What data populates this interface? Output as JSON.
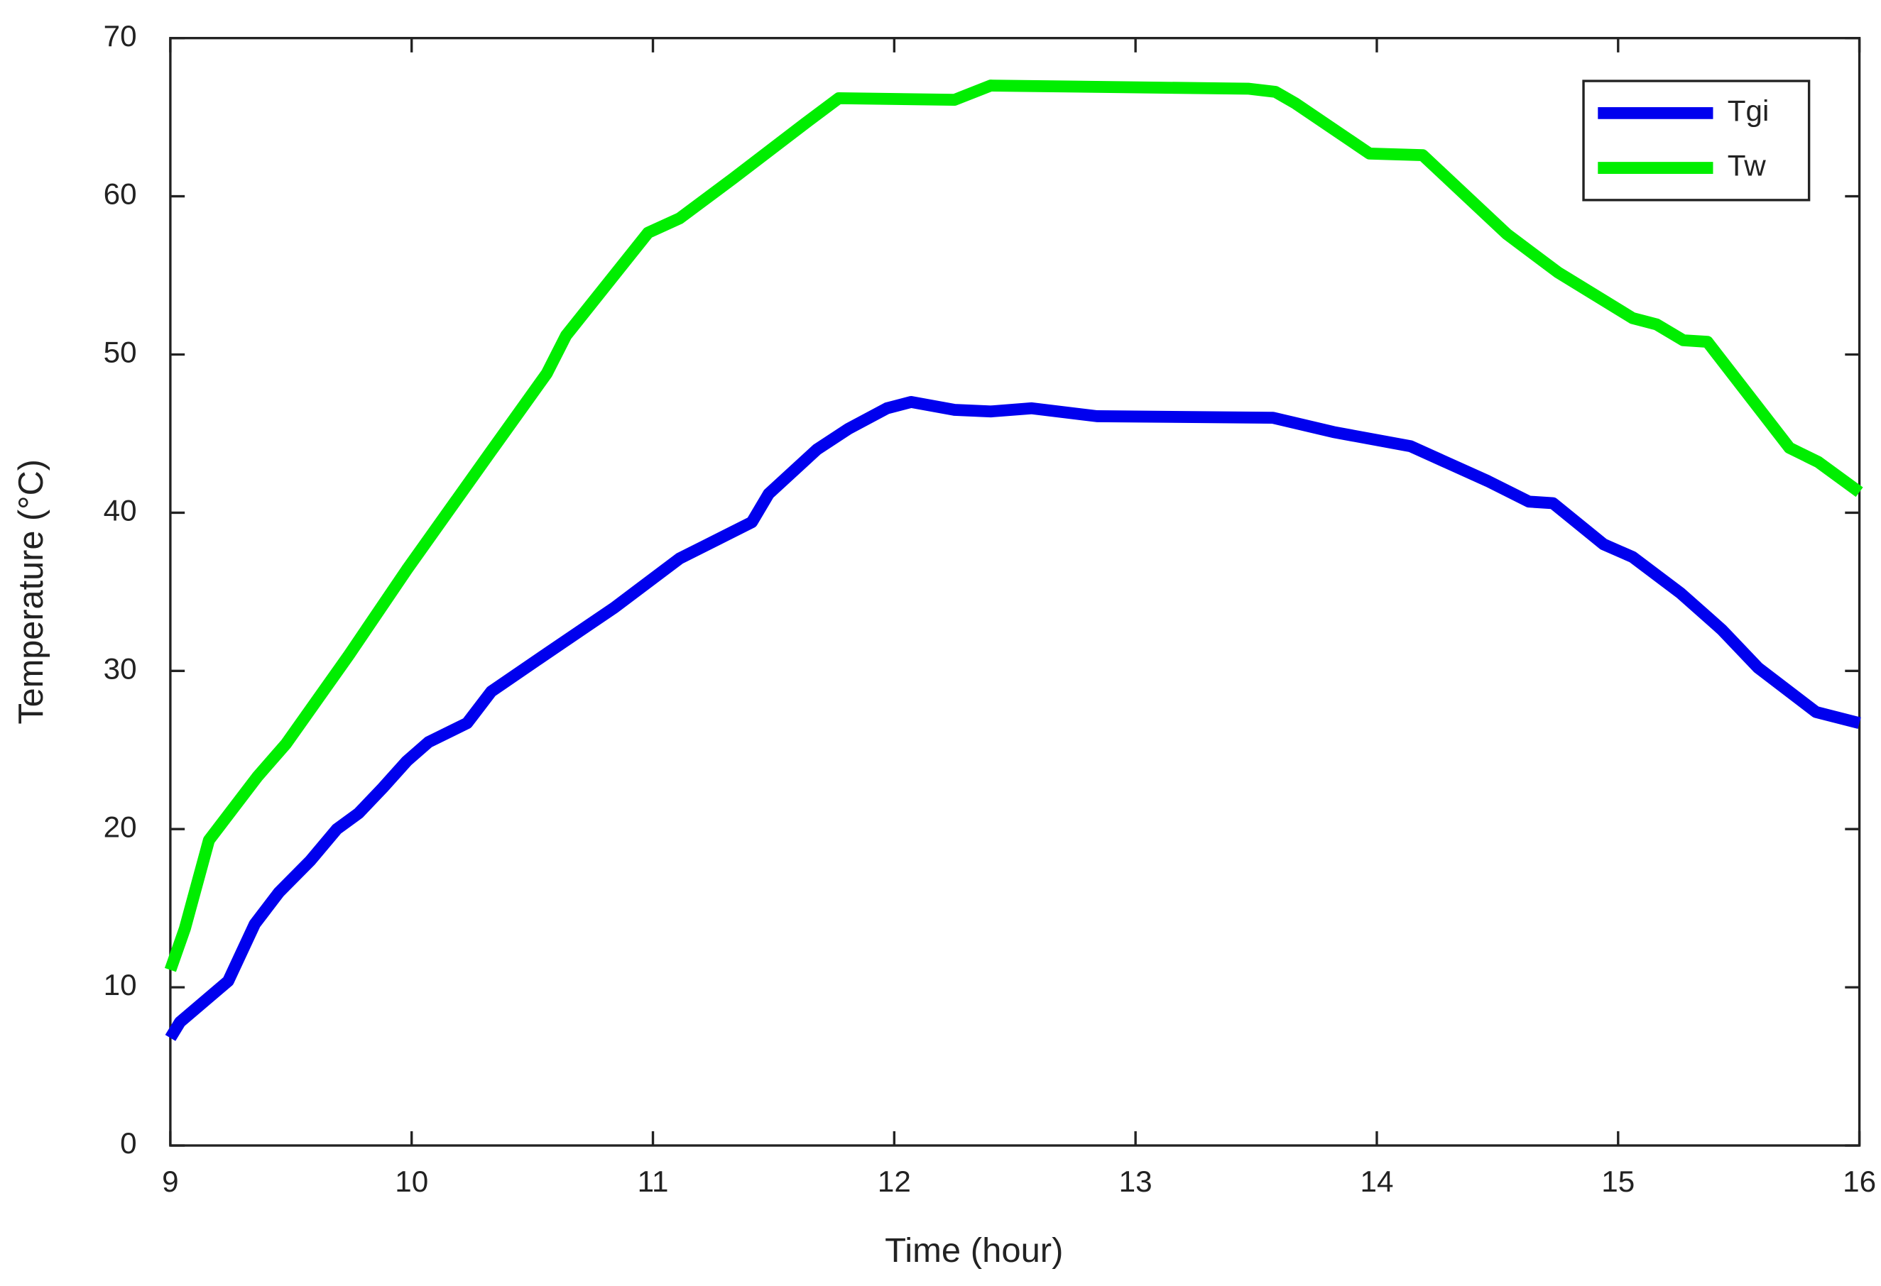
{
  "chart_data": {
    "type": "line",
    "xlabel": "Time (hour)",
    "ylabel": "Temperature (°C)",
    "xlim": [
      9,
      16
    ],
    "xticks": [
      9,
      10,
      11,
      12,
      13,
      14,
      15,
      16
    ],
    "ylim": [
      0,
      70
    ],
    "yticks": [
      0,
      10,
      20,
      30,
      40,
      50,
      60,
      70
    ],
    "legend": "upper-right",
    "series": [
      {
        "name": "Tgi",
        "color": "#0000ee",
        "x": [
          9.0,
          9.04,
          9.24,
          9.35,
          9.45,
          9.58,
          9.69,
          9.78,
          9.88,
          9.98,
          10.07,
          10.23,
          10.33,
          10.56,
          10.84,
          11.11,
          11.41,
          11.48,
          11.68,
          11.81,
          11.97,
          12.07,
          12.25,
          12.4,
          12.57,
          12.84,
          13.57,
          13.82,
          14.14,
          14.46,
          14.63,
          14.73,
          14.94,
          15.06,
          15.26,
          15.43,
          15.58,
          15.82,
          16.0
        ],
        "values": [
          6.8,
          7.8,
          10.4,
          14,
          16,
          18,
          20,
          21,
          22.6,
          24.3,
          25.5,
          26.7,
          28.7,
          31.1,
          34,
          37.1,
          39.4,
          41.2,
          44,
          45.3,
          46.6,
          47,
          46.5,
          46.4,
          46.6,
          46.1,
          46,
          45.1,
          44.2,
          42,
          40.7,
          40.6,
          38,
          37.2,
          34.9,
          32.6,
          30.2,
          27.4,
          26.7
        ]
      },
      {
        "name": "Tw",
        "color": "#00ee00",
        "x": [
          9.0,
          9.06,
          9.16,
          9.36,
          9.48,
          9.61,
          9.74,
          9.98,
          10.33,
          10.56,
          10.64,
          10.98,
          11.11,
          11.33,
          11.63,
          11.77,
          12.25,
          12.4,
          13.47,
          13.58,
          13.66,
          13.97,
          14.19,
          14.54,
          14.75,
          15.06,
          15.16,
          15.27,
          15.37,
          15.71,
          15.83,
          16.0
        ],
        "values": [
          11.1,
          13.7,
          19.3,
          23.3,
          25.4,
          28.2,
          31,
          36.4,
          43.9,
          48.8,
          51.2,
          57.7,
          58.6,
          61.1,
          64.6,
          66.2,
          66.1,
          67,
          66.8,
          66.6,
          65.9,
          62.7,
          62.6,
          57.6,
          55.2,
          52.3,
          51.9,
          50.9,
          50.8,
          44.1,
          43.2,
          41.3
        ]
      }
    ]
  }
}
